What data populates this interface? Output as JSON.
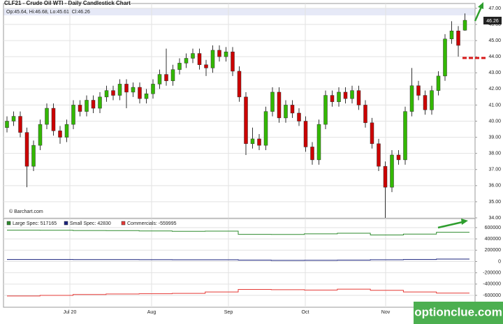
{
  "header": {
    "title": "CLF21 - Crude Oil WTI - Daily Candlestick Chart",
    "info": "Op:45.64, Hi:46.68, Lo:45.61, Cl:46.26",
    "last_price": "46.26",
    "credit": "© Barchart.com",
    "watermark": "optionclue.com"
  },
  "x_axis_labels": [
    "Jul 20",
    "Aug",
    "Sep",
    "Oct",
    "Nov"
  ],
  "chart_data": [
    {
      "type": "candlestick",
      "up_color": "#33b800",
      "down_color": "#cc0000",
      "open": [
        39.6,
        40.0,
        40.3,
        39.3,
        37.2,
        38.5,
        39.8,
        40.8,
        39.4,
        39.0,
        39.8,
        41.0,
        40.6,
        41.3,
        40.8,
        41.5,
        41.9,
        41.6,
        42.3,
        41.8,
        42.1,
        41.4,
        41.7,
        42.3,
        42.9,
        42.5,
        43.2,
        43.6,
        43.9,
        44.2,
        43.5,
        43.3,
        44.4,
        44.0,
        44.3,
        43.1,
        41.5,
        38.6,
        38.9,
        38.5,
        40.6,
        41.8,
        40.2,
        41.0,
        40.5,
        40.0,
        38.4,
        37.6,
        39.8,
        41.6,
        41.2,
        41.8,
        41.4,
        41.9,
        41.0,
        39.9,
        38.6,
        37.2,
        35.9,
        37.9,
        37.6,
        40.6,
        42.2,
        41.6,
        40.7,
        41.9,
        42.8,
        45.1,
        45.6,
        45.64
      ],
      "high": [
        40.3,
        40.6,
        40.6,
        39.6,
        38.8,
        40.1,
        41.1,
        41.1,
        39.7,
        40.1,
        41.3,
        41.3,
        41.6,
        41.6,
        41.8,
        42.2,
        42.2,
        42.6,
        42.6,
        42.4,
        42.4,
        42.0,
        42.6,
        43.2,
        44.5,
        43.5,
        43.9,
        44.2,
        44.5,
        44.5,
        43.8,
        44.7,
        44.7,
        44.6,
        44.6,
        43.4,
        41.8,
        39.6,
        39.2,
        40.9,
        42.1,
        42.1,
        41.3,
        41.3,
        40.8,
        40.3,
        38.7,
        40.1,
        41.9,
        41.9,
        42.1,
        42.1,
        42.2,
        42.2,
        41.3,
        40.2,
        38.9,
        37.5,
        38.2,
        38.2,
        40.9,
        43.3,
        42.5,
        41.9,
        42.2,
        43.1,
        45.4,
        46.2,
        45.9,
        46.68
      ],
      "low": [
        39.3,
        39.7,
        39.0,
        35.9,
        36.9,
        38.2,
        39.5,
        39.1,
        38.6,
        38.7,
        39.5,
        40.3,
        40.3,
        40.5,
        40.5,
        41.2,
        41.3,
        41.3,
        40.8,
        41.5,
        41.1,
        41.1,
        41.4,
        42.0,
        42.2,
        42.2,
        42.9,
        43.3,
        43.6,
        43.2,
        42.8,
        43.0,
        43.7,
        43.7,
        42.8,
        41.2,
        37.9,
        38.3,
        38.2,
        38.2,
        40.3,
        39.9,
        39.9,
        40.2,
        39.7,
        38.1,
        37.3,
        37.3,
        39.5,
        40.9,
        40.9,
        41.1,
        41.1,
        40.7,
        39.6,
        38.3,
        36.9,
        34.0,
        35.6,
        37.3,
        37.3,
        40.3,
        41.3,
        40.4,
        40.4,
        41.6,
        42.5,
        44.8,
        44.0,
        45.61
      ],
      "close": [
        40.0,
        40.3,
        39.3,
        37.2,
        38.5,
        39.8,
        40.8,
        39.4,
        39.0,
        39.8,
        41.0,
        40.6,
        41.3,
        40.8,
        41.5,
        41.9,
        41.6,
        42.3,
        41.8,
        42.1,
        41.4,
        41.7,
        42.3,
        42.9,
        42.5,
        43.2,
        43.6,
        43.9,
        44.2,
        43.5,
        43.3,
        44.4,
        44.0,
        44.3,
        43.1,
        41.5,
        38.6,
        38.9,
        38.5,
        40.6,
        41.8,
        40.2,
        41.0,
        40.5,
        40.0,
        38.4,
        37.6,
        39.8,
        41.6,
        41.2,
        41.8,
        41.4,
        41.9,
        41.0,
        39.9,
        38.6,
        37.2,
        35.9,
        37.9,
        37.6,
        40.6,
        42.2,
        41.6,
        40.7,
        41.9,
        42.8,
        45.1,
        45.6,
        44.7,
        46.26
      ],
      "ylim": [
        34,
        47.3
      ],
      "yticks": [
        {
          "value": 34,
          "label": "34.00"
        },
        {
          "value": 35,
          "label": "35.00"
        },
        {
          "value": 36,
          "label": "36.00"
        },
        {
          "value": 37,
          "label": "37.00"
        },
        {
          "value": 38,
          "label": "38.00"
        },
        {
          "value": 39,
          "label": "39.00"
        },
        {
          "value": 40,
          "label": "40.00"
        },
        {
          "value": 41,
          "label": "41.00"
        },
        {
          "value": 42,
          "label": "42.00"
        },
        {
          "value": 43,
          "label": "43.00"
        },
        {
          "value": 44,
          "label": "44.00"
        },
        {
          "value": 45,
          "label": "45.00"
        },
        {
          "value": 46,
          "label": "46.00"
        },
        {
          "value": 47,
          "label": "47.00"
        }
      ],
      "grid": true
    },
    {
      "type": "line",
      "step": true,
      "series": [
        {
          "name": "Large Spec:",
          "color": "#2e8b2e",
          "values": [
            555000,
            553000,
            548000,
            546000,
            540000,
            535000,
            538000,
            480000,
            478000,
            490000,
            500000,
            470000,
            485000,
            517165
          ]
        },
        {
          "name": "Small Spec:",
          "color": "#1a237e",
          "values": [
            35000,
            36000,
            34000,
            33000,
            32000,
            31000,
            30000,
            25000,
            20000,
            22000,
            24000,
            30000,
            35000,
            42830
          ]
        },
        {
          "name": "Commercials:",
          "color": "#e53935",
          "values": [
            -610000,
            -600000,
            -585000,
            -575000,
            -570000,
            -565000,
            -540000,
            -495000,
            -500000,
            -505000,
            -490000,
            -510000,
            -540000,
            -559995
          ]
        }
      ],
      "ylim": [
        -810000,
        760000
      ],
      "yticks": [
        600000,
        400000,
        200000,
        0,
        -200000,
        -400000,
        -600000
      ],
      "grid": true
    }
  ]
}
